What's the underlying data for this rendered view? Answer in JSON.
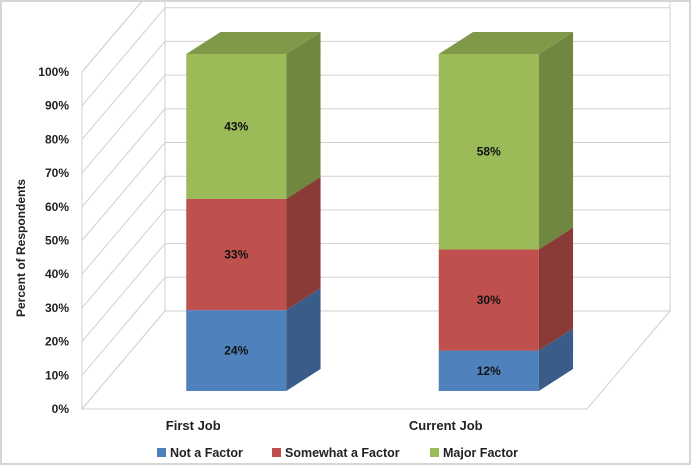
{
  "chart_data": {
    "type": "bar",
    "stacked": true,
    "three_d": true,
    "title": "",
    "xlabel": "",
    "ylabel": "Percent of Respondents",
    "ylim": [
      0,
      100
    ],
    "yticks": [
      "0%",
      "10%",
      "20%",
      "30%",
      "40%",
      "50%",
      "60%",
      "70%",
      "80%",
      "90%",
      "100%"
    ],
    "categories": [
      "First Job",
      "Current Job"
    ],
    "series": [
      {
        "name": "Not a Factor",
        "values": [
          24,
          12
        ],
        "labels": [
          "24%",
          "12%"
        ],
        "color": "#4f81bd"
      },
      {
        "name": "Somewhat a Factor",
        "values": [
          33,
          30
        ],
        "labels": [
          "33%",
          "30%"
        ],
        "color": "#c0504d"
      },
      {
        "name": "Major Factor",
        "values": [
          43,
          58
        ],
        "labels": [
          "43%",
          "58%"
        ],
        "color": "#9bbb59"
      }
    ],
    "grid": true,
    "legend": "bottom"
  }
}
